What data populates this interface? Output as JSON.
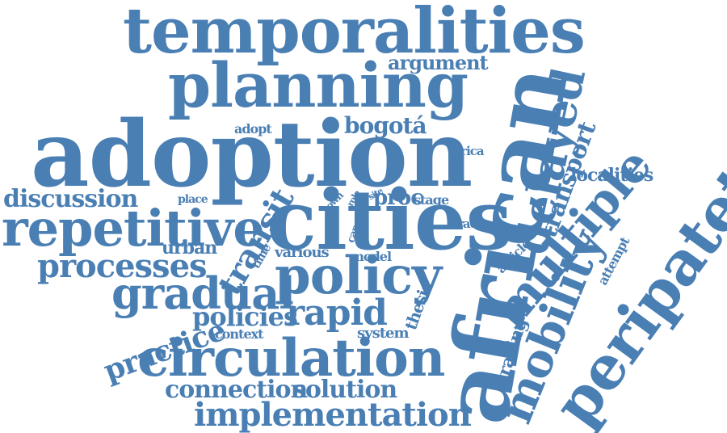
{
  "colors": {
    "text": "#4a7fb4",
    "background": "#ffffff"
  },
  "words": [
    "temporalities",
    "planning",
    "argument",
    "adoption",
    "african",
    "delayed",
    "transport",
    "peripatetic",
    "cities",
    "policy",
    "multiple",
    "mobility",
    "repetitive",
    "discussion",
    "processes",
    "gradual",
    "circulation",
    "practice",
    "policies",
    "rapid",
    "implementation",
    "connection",
    "solution",
    "bogotá",
    "adopt",
    "africa",
    "localities",
    "place",
    "town",
    "role",
    "site",
    "proc",
    "stage",
    "cape",
    "trace",
    "urban",
    "time",
    "various",
    "model",
    "transit",
    "article",
    "attempt",
    "thesis",
    "tracing",
    "context",
    "system"
  ]
}
